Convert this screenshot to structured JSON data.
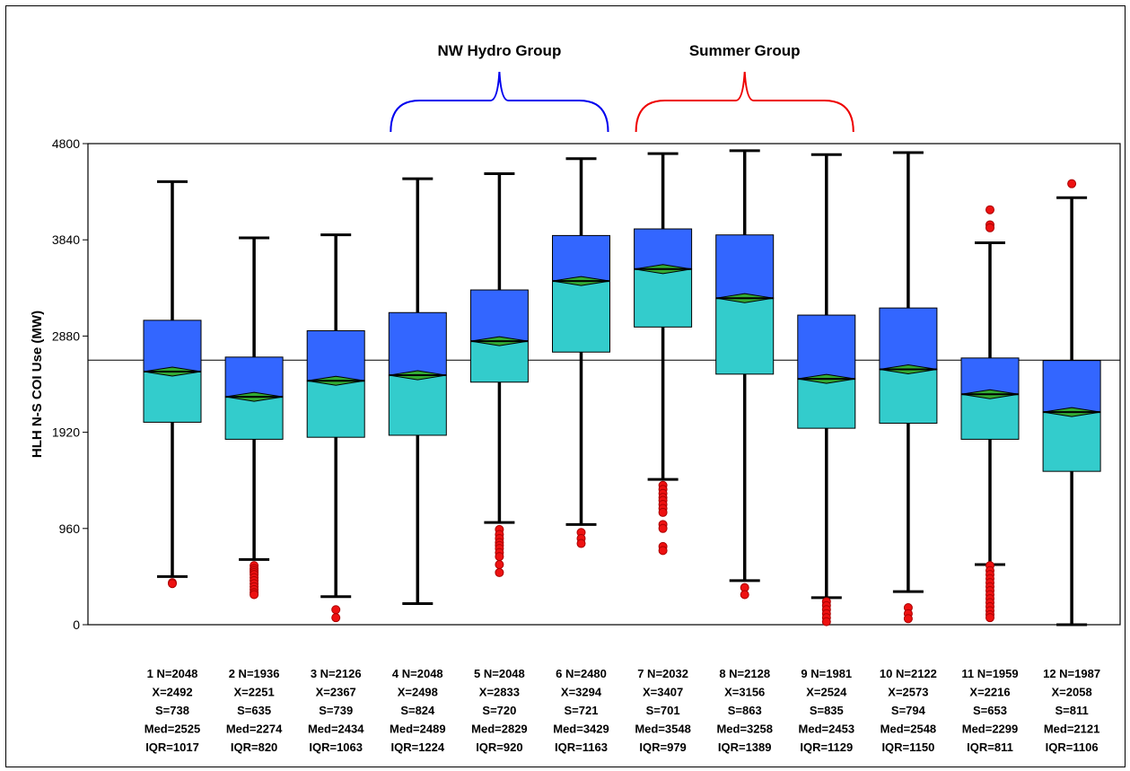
{
  "chart_data": {
    "type": "box",
    "ylabel": "HLH N-S COI Use (MW)",
    "ylim": [
      0,
      4800
    ],
    "yticks": [
      0,
      960,
      1920,
      2880,
      3840,
      4800
    ],
    "reference_line": 2640,
    "colors": {
      "upper_box": "#3366ff",
      "lower_box": "#33cccc",
      "mean_diamond": "#33aa33",
      "outlier": "#ee1111",
      "bracket_nw": "#0000ee",
      "bracket_summer": "#ee0000"
    },
    "groups": [
      {
        "label": "NW Hydro Group",
        "from": 4,
        "to": 6
      },
      {
        "label": "Summer Group",
        "from": 7,
        "to": 9
      }
    ],
    "boxes": [
      {
        "id": 1,
        "N": 2048,
        "X": 2492,
        "S": 738,
        "Med": 2525,
        "IQR": 1017,
        "q1": 2020,
        "q3": 3037,
        "low": 480,
        "high": 4420,
        "outliers": [
          420,
          410
        ]
      },
      {
        "id": 2,
        "N": 1936,
        "X": 2251,
        "S": 635,
        "Med": 2274,
        "IQR": 820,
        "q1": 1850,
        "q3": 2670,
        "low": 650,
        "high": 3860,
        "outliers": [
          590,
          560,
          540,
          520,
          500,
          470,
          440,
          410,
          380,
          350,
          320,
          300
        ]
      },
      {
        "id": 3,
        "N": 2126,
        "X": 2367,
        "S": 739,
        "Med": 2434,
        "IQR": 1063,
        "q1": 1870,
        "q3": 2933,
        "low": 280,
        "high": 3890,
        "outliers": [
          150,
          70
        ]
      },
      {
        "id": 4,
        "N": 2048,
        "X": 2498,
        "S": 824,
        "Med": 2489,
        "IQR": 1224,
        "q1": 1890,
        "q3": 3114,
        "low": 210,
        "high": 4450
      },
      {
        "id": 5,
        "N": 2048,
        "X": 2833,
        "S": 720,
        "Med": 2829,
        "IQR": 920,
        "q1": 2420,
        "q3": 3340,
        "low": 1020,
        "high": 4500,
        "outliers": [
          950,
          900,
          860,
          820,
          790,
          760,
          720,
          680,
          600,
          520
        ]
      },
      {
        "id": 6,
        "N": 2480,
        "X": 3294,
        "S": 721,
        "Med": 3429,
        "IQR": 1163,
        "q1": 2720,
        "q3": 3883,
        "low": 1000,
        "high": 4650,
        "outliers": [
          920,
          860,
          810
        ]
      },
      {
        "id": 7,
        "N": 2032,
        "X": 3407,
        "S": 701,
        "Med": 3548,
        "IQR": 979,
        "q1": 2970,
        "q3": 3949,
        "low": 1450,
        "high": 4700,
        "outliers": [
          1390,
          1350,
          1310,
          1270,
          1240,
          1200,
          1160,
          1120,
          1000,
          960,
          780,
          740
        ]
      },
      {
        "id": 8,
        "N": 2128,
        "X": 3156,
        "S": 863,
        "Med": 3258,
        "IQR": 1389,
        "q1": 2500,
        "q3": 3889,
        "low": 440,
        "high": 4730,
        "outliers": [
          370,
          300
        ]
      },
      {
        "id": 9,
        "N": 1981,
        "X": 2524,
        "S": 835,
        "Med": 2453,
        "IQR": 1129,
        "q1": 1960,
        "q3": 3089,
        "low": 270,
        "high": 4690,
        "outliers": [
          230,
          190,
          150,
          110,
          70,
          30
        ]
      },
      {
        "id": 10,
        "N": 2122,
        "X": 2573,
        "S": 794,
        "Med": 2548,
        "IQR": 1150,
        "q1": 2010,
        "q3": 3160,
        "low": 330,
        "high": 4710,
        "outliers": [
          170,
          110,
          60
        ]
      },
      {
        "id": 11,
        "N": 1959,
        "X": 2216,
        "S": 653,
        "Med": 2299,
        "IQR": 811,
        "q1": 1850,
        "q3": 2661,
        "low": 600,
        "high": 3810,
        "outliers": [
          4140,
          3990,
          3960,
          590,
          540,
          500,
          460,
          420,
          380,
          340,
          300,
          260,
          220,
          180,
          140,
          100,
          70
        ]
      },
      {
        "id": 12,
        "N": 1987,
        "X": 2058,
        "S": 811,
        "Med": 2121,
        "IQR": 1106,
        "q1": 1530,
        "q3": 2636,
        "low": 0,
        "high": 4260,
        "outliers": [
          4400
        ]
      }
    ]
  }
}
